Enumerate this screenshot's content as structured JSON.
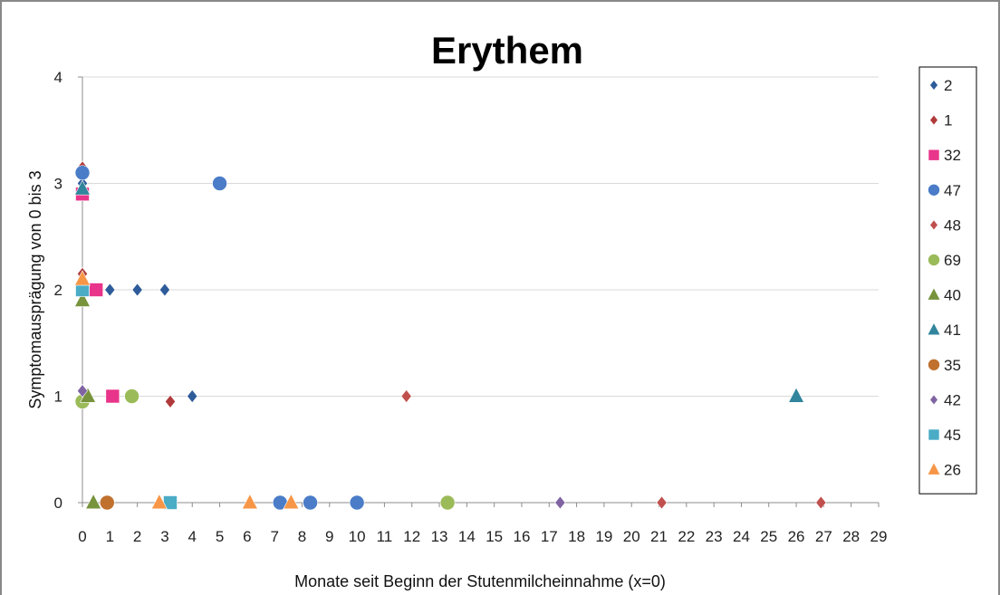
{
  "chart_data": {
    "type": "scatter",
    "title": "Erythem",
    "xlabel": "Monate seit Beginn der Stutenmilcheinnahme (x=0)",
    "ylabel": "Symptomausprägung von 0 bis 3",
    "xlim": [
      0,
      29
    ],
    "ylim": [
      0,
      4
    ],
    "x_ticks": [
      "0",
      "1",
      "2",
      "3",
      "4",
      "5",
      "6",
      "7",
      "8",
      "9",
      "10",
      "11",
      "12",
      "13",
      "14",
      "15",
      "16",
      "17",
      "18",
      "19",
      "20",
      "21",
      "22",
      "23",
      "24",
      "25",
      "26",
      "27",
      "28",
      "29"
    ],
    "y_ticks": [
      "0",
      "1",
      "2",
      "3",
      "4"
    ],
    "grid": "horizontal",
    "legend_position": "right",
    "series": [
      {
        "name": "2",
        "marker": "diamond",
        "color": "#2e5b9a",
        "points": [
          [
            0,
            3.0
          ],
          [
            1,
            2
          ],
          [
            2,
            2
          ],
          [
            3,
            2
          ],
          [
            4,
            1
          ]
        ]
      },
      {
        "name": "1",
        "marker": "diamond",
        "color": "#b03a3a",
        "points": [
          [
            0,
            3.15
          ],
          [
            0,
            2.15
          ],
          [
            3.2,
            0.95
          ]
        ]
      },
      {
        "name": "32",
        "marker": "square",
        "color": "#e8348a",
        "points": [
          [
            0,
            2.9
          ],
          [
            0.5,
            2
          ],
          [
            1.1,
            1
          ]
        ]
      },
      {
        "name": "47",
        "marker": "circle",
        "color": "#4a7cc8",
        "points": [
          [
            0,
            3.1
          ],
          [
            5,
            3
          ],
          [
            7.2,
            0
          ],
          [
            8.3,
            0
          ],
          [
            10,
            0
          ]
        ]
      },
      {
        "name": "48",
        "marker": "diamond",
        "color": "#c0504d",
        "points": [
          [
            11.8,
            1
          ],
          [
            21.1,
            0
          ],
          [
            26.9,
            0
          ]
        ]
      },
      {
        "name": "69",
        "marker": "circle",
        "color": "#9bbb59",
        "points": [
          [
            0,
            0.95
          ],
          [
            1.8,
            1
          ],
          [
            13.3,
            0
          ]
        ]
      },
      {
        "name": "40",
        "marker": "triangle",
        "color": "#77933c",
        "points": [
          [
            0,
            1.9
          ],
          [
            0.2,
            1
          ],
          [
            0.4,
            0
          ]
        ]
      },
      {
        "name": "41",
        "marker": "triangle",
        "color": "#31859c",
        "points": [
          [
            0,
            2.95
          ],
          [
            26,
            1
          ]
        ]
      },
      {
        "name": "35",
        "marker": "circle",
        "color": "#c0712e",
        "points": [
          [
            0.9,
            0
          ]
        ]
      },
      {
        "name": "42",
        "marker": "diamond",
        "color": "#8064a2",
        "points": [
          [
            0,
            1.05
          ],
          [
            17.4,
            0
          ]
        ]
      },
      {
        "name": "45",
        "marker": "square",
        "color": "#4bacc6",
        "points": [
          [
            0,
            2
          ],
          [
            3.2,
            0
          ]
        ]
      },
      {
        "name": "26",
        "marker": "triangle",
        "color": "#f79646",
        "points": [
          [
            0,
            2.1
          ],
          [
            2.8,
            0
          ],
          [
            6.1,
            0
          ],
          [
            7.6,
            0
          ]
        ]
      }
    ]
  }
}
